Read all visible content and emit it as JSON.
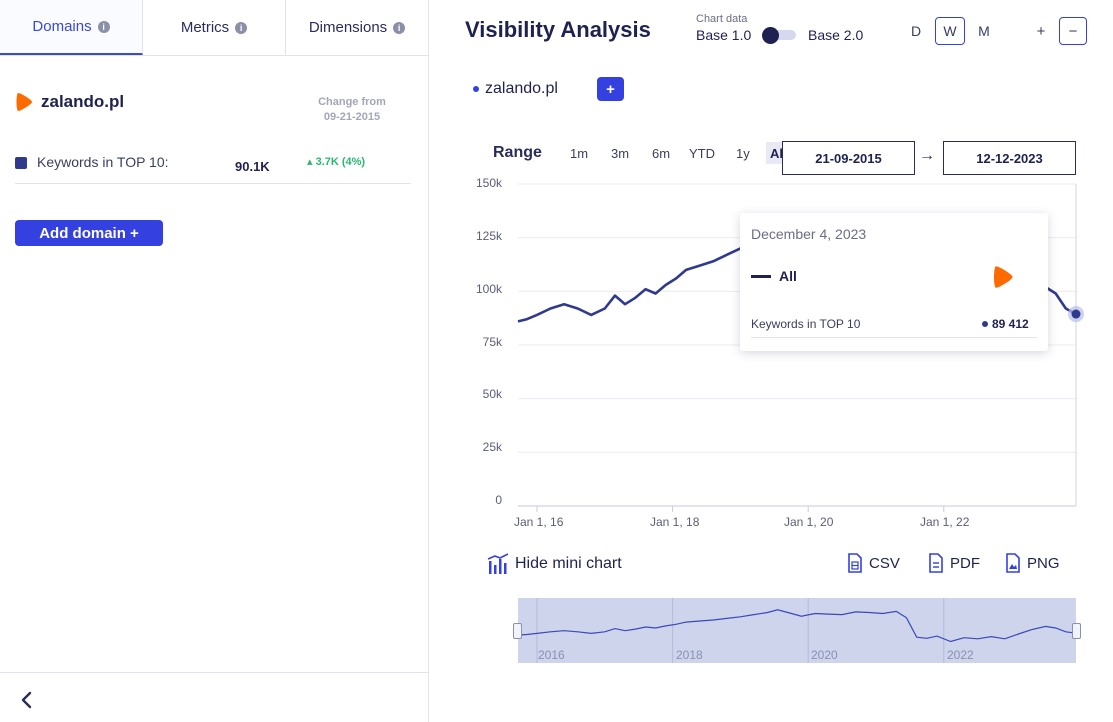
{
  "tabs": [
    {
      "label": "Domains",
      "active": true
    },
    {
      "label": "Metrics",
      "active": false
    },
    {
      "label": "Dimensions",
      "active": false
    }
  ],
  "domain": {
    "name": "zalando.pl",
    "change_from_label": "Change from",
    "change_from_date": "09-21-2015",
    "metric_label": "Keywords in TOP 10:",
    "metric_value": "90.1K",
    "metric_change": "▴ 3.7K (4%)",
    "add_domain_label": "Add domain +"
  },
  "header": {
    "title": "Visibility Analysis",
    "chart_data_label": "Chart data",
    "base1_label": "Base 1.0",
    "base2_label": "Base 2.0",
    "periods": [
      "D",
      "W",
      "M"
    ],
    "active_period": "W",
    "zoom_in": "+",
    "zoom_out": "−"
  },
  "legend": {
    "domain": "zalando.pl",
    "add_label": "+"
  },
  "range": {
    "label": "Range",
    "options": [
      "1m",
      "3m",
      "6m",
      "YTD",
      "1y",
      "All"
    ],
    "active": "All",
    "start_date": "21-09-2015",
    "end_date": "12-12-2023",
    "arrow": "→"
  },
  "tooltip": {
    "date": "December 4, 2023",
    "series": "All",
    "metric": "Keywords in TOP 10",
    "value": "89 412"
  },
  "actions": {
    "hide_mini_chart": "Hide mini chart",
    "csv": "CSV",
    "pdf": "PDF",
    "png": "PNG"
  },
  "colors": {
    "accent": "#3440e0",
    "series": "#2f3a8f",
    "brand_orange": "#ff6a00",
    "positive": "#2bb673"
  },
  "chart_data": {
    "type": "line",
    "title": "",
    "y_ticks": [
      "150k",
      "125k",
      "100k",
      "75k",
      "50k",
      "25k",
      "0"
    ],
    "ylim": [
      0,
      150000
    ],
    "x_ticks": [
      "Jan 1, 16",
      "Jan 1, 18",
      "Jan 1, 20",
      "Jan 1, 22"
    ],
    "xlim": [
      2015.72,
      2023.95
    ],
    "mini_x_ticks": [
      "2016",
      "2018",
      "2020",
      "2022"
    ],
    "series": [
      {
        "name": "All",
        "x": [
          2015.72,
          2015.85,
          2016.0,
          2016.2,
          2016.4,
          2016.6,
          2016.8,
          2017.0,
          2017.15,
          2017.3,
          2017.45,
          2017.6,
          2017.75,
          2017.9,
          2018.05,
          2018.2,
          2018.4,
          2018.6,
          2018.8,
          2019.0,
          2019.2,
          2019.4,
          2019.55,
          2019.7,
          2019.9,
          2020.1,
          2020.3,
          2020.5,
          2020.7,
          2020.9,
          2021.1,
          2021.3,
          2021.45,
          2021.6,
          2021.75,
          2021.9,
          2022.1,
          2022.3,
          2022.5,
          2022.7,
          2022.9,
          2023.1,
          2023.3,
          2023.5,
          2023.65,
          2023.8,
          2023.95
        ],
        "values": [
          86000,
          87000,
          89000,
          92000,
          94000,
          92000,
          89000,
          92000,
          98000,
          94000,
          97000,
          101000,
          99000,
          103000,
          106000,
          110000,
          112000,
          114000,
          117000,
          120000,
          124000,
          128000,
          133000,
          128000,
          121000,
          126000,
          125000,
          124000,
          129000,
          128000,
          126000,
          130000,
          118000,
          82000,
          80000,
          84000,
          74000,
          81000,
          79000,
          83000,
          79000,
          88000,
          96000,
          102000,
          99000,
          92000,
          89412
        ]
      }
    ]
  }
}
